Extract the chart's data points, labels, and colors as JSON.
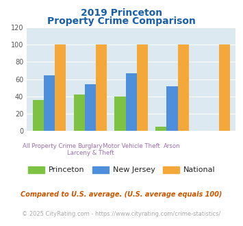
{
  "title_line1": "2019 Princeton",
  "title_line2": "Property Crime Comparison",
  "princeton": [
    36,
    42,
    40,
    5,
    0
  ],
  "new_jersey": [
    64,
    54,
    67,
    52,
    0
  ],
  "national": [
    100,
    100,
    100,
    100,
    100
  ],
  "princeton_color": "#7dc243",
  "nj_color": "#4d8fdb",
  "national_color": "#f5a83a",
  "bg_color": "#dce9f0",
  "title_color": "#1a5fa8",
  "ylabel_max": 120,
  "yticks": [
    0,
    20,
    40,
    60,
    80,
    100,
    120
  ],
  "xlabel_color": "#9a6fb0",
  "legend_princeton": "Princeton",
  "legend_nj": "New Jersey",
  "legend_national": "National",
  "footnote1": "Compared to U.S. average. (U.S. average equals 100)",
  "footnote2": "© 2025 CityRating.com - https://www.cityrating.com/crime-statistics/",
  "footnote1_color": "#cc5500",
  "footnote2_color": "#aaaaaa",
  "grid_color": "#ffffff",
  "label_row1": [
    "All Property Crime",
    "Burglary",
    "Motor Vehicle Theft",
    "Arson"
  ],
  "label_row2": [
    "",
    "Larceny & Theft",
    "",
    ""
  ]
}
